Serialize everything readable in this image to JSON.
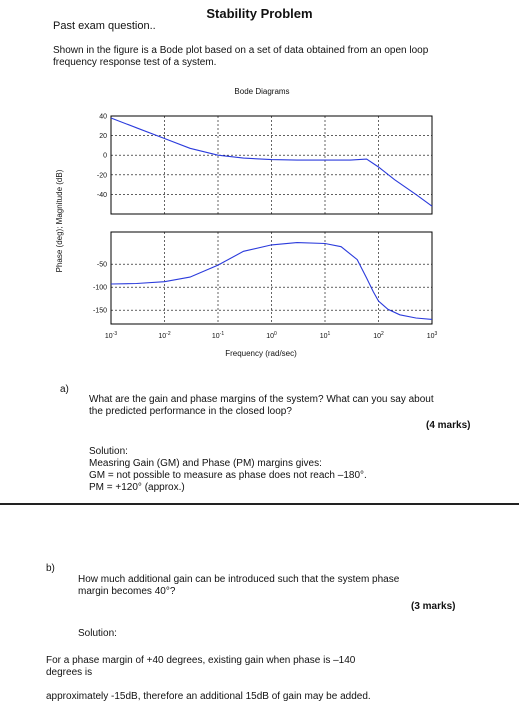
{
  "document": {
    "title": "Stability Problem",
    "header_note": "Past exam question..",
    "intro": "Shown in the figure is a Bode plot based on a set of data obtained from an open loop frequency response test of a system."
  },
  "chart_data": {
    "type": "line",
    "title": "Bode Diagrams",
    "xlabel": "Frequency (rad/sec)",
    "ylabel": "Phase (deg); Magnitude (dB)",
    "x_scale": "log",
    "x_ticks": [
      "10-3",
      "10-2",
      "10-1",
      "100",
      "101",
      "102",
      "103"
    ],
    "x_tick_values": [
      0.001,
      0.01,
      0.1,
      1,
      10,
      100,
      1000
    ],
    "magnitude": {
      "yticks": [
        40,
        20,
        0,
        -20,
        -40
      ],
      "ylim": [
        -60,
        40
      ],
      "x": [
        0.001,
        0.003,
        0.01,
        0.03,
        0.1,
        0.3,
        1,
        3,
        10,
        30,
        60,
        100,
        200,
        500,
        1000
      ],
      "y": [
        38,
        28,
        17,
        7,
        0,
        -3,
        -4.5,
        -5,
        -5,
        -5,
        -4,
        -12,
        -25,
        -40,
        -52
      ]
    },
    "phase": {
      "yticks": [
        -50,
        -100,
        -150
      ],
      "ylim": [
        -180,
        20
      ],
      "x": [
        0.001,
        0.003,
        0.01,
        0.03,
        0.1,
        0.3,
        1,
        3,
        10,
        20,
        40,
        60,
        80,
        100,
        150,
        250,
        500,
        1000
      ],
      "y": [
        -93,
        -92,
        -88,
        -78,
        -52,
        -22,
        -8,
        -3,
        -5,
        -12,
        -40,
        -80,
        -110,
        -130,
        -148,
        -160,
        -167,
        -170
      ]
    },
    "grid": true
  },
  "question_a": {
    "label": "a)",
    "line1": "What are the gain and phase margins of the system? What can you say about",
    "line2": "the predicted performance in the closed loop?",
    "marks": "(4 marks)",
    "solution_heading": "Solution:",
    "solution_line1": "Measring Gain (GM) and Phase (PM) margins gives:",
    "solution_line2": "GM = not possible to measure as phase does not reach –180°.",
    "solution_line3": "PM = +120° (approx.)"
  },
  "question_b": {
    "label": "b)",
    "line1": "How much additional gain can be introduced such that the system phase",
    "line2": "margin becomes 40°?",
    "marks": "(3 marks)",
    "solution_heading": "Solution:",
    "answer_line1": "For a phase margin of +40 degrees, existing gain when phase is –140",
    "answer_line2": "degrees is",
    "answer_line3": "approximately -15dB, therefore an additional 15dB of gain may be added."
  }
}
